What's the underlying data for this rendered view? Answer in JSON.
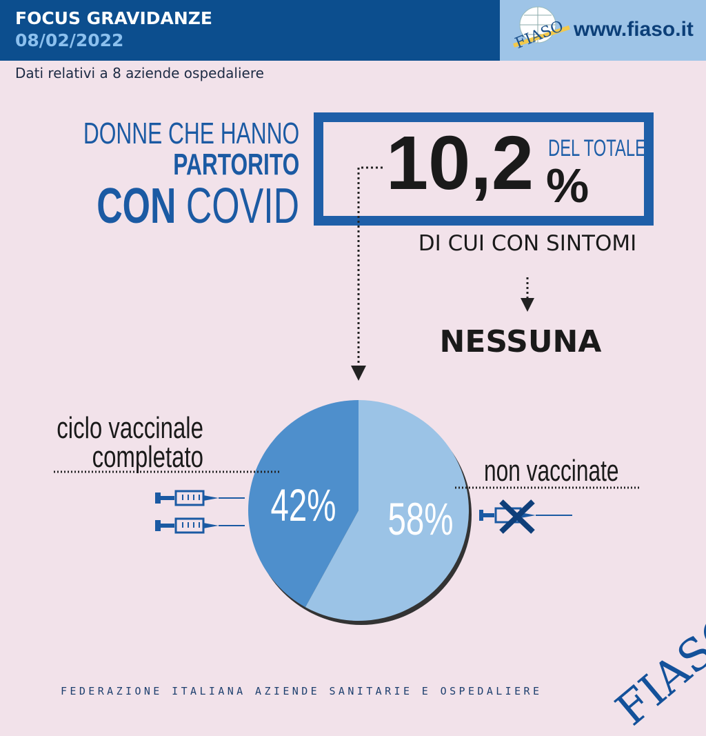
{
  "header": {
    "title": "FOCUS GRAVIDANZE",
    "date": "08/02/2022",
    "url": "www.fiaso.it",
    "logo_text": "FIASO"
  },
  "subtitle": "Dati relativi a 8 aziende ospedaliere",
  "headline": {
    "line1": "DONNE CHE HANNO",
    "line2": "PARTORITO",
    "line3_bold": "CON",
    "line3_rest": " COVID"
  },
  "stat": {
    "value": "10,2",
    "unit": "%",
    "label": "DEL TOTALE"
  },
  "symptoms": {
    "label": "DI CUI CON SINTOMI",
    "value": "NESSUNA"
  },
  "chart_data": {
    "type": "pie",
    "categories": [
      "ciclo vaccinale completato",
      "non vaccinate"
    ],
    "values": [
      42,
      58
    ],
    "labels": [
      "42%",
      "58%"
    ],
    "colors": [
      "#4e8fcc",
      "#9bc3e6"
    ]
  },
  "icons": {
    "vaccinated": "syringe-icon",
    "unvaccinated": "crossed-syringe-icon"
  },
  "footer": "FEDERAZIONE ITALIANA AZIENDE SANITARIE E OSPEDALIERE",
  "watermark": "FIASO",
  "colors": {
    "header_dark": "#0c4e8e",
    "header_light": "#9ec4e7",
    "accent": "#1f5fa8",
    "background": "#f2e2ea"
  }
}
